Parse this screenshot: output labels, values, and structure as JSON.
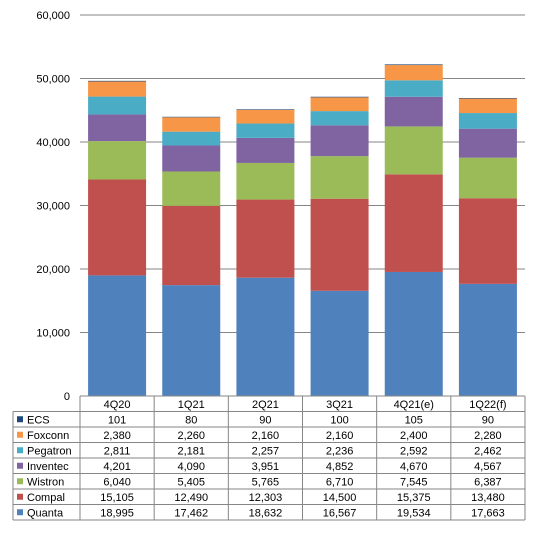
{
  "chart_data": {
    "type": "bar",
    "stacked": true,
    "categories": [
      "4Q20",
      "1Q21",
      "2Q21",
      "3Q21",
      "4Q21(e)",
      "1Q22(f)"
    ],
    "ylim": [
      0,
      60000
    ],
    "yticks": [
      0,
      10000,
      20000,
      30000,
      40000,
      50000,
      60000
    ],
    "ytick_labels": [
      "0",
      "10,000",
      "20,000",
      "30,000",
      "40,000",
      "50,000",
      "60,000"
    ],
    "grid": true,
    "legend_placement": "data-table-left",
    "series": [
      {
        "name": "Quanta",
        "color": "#4f81bd",
        "values": [
          18995,
          17462,
          18632,
          16567,
          19534,
          17663
        ],
        "labels": [
          "18,995",
          "17,462",
          "18,632",
          "16,567",
          "19,534",
          "17,663"
        ]
      },
      {
        "name": "Compal",
        "color": "#c0504d",
        "values": [
          15105,
          12490,
          12303,
          14500,
          15375,
          13480
        ],
        "labels": [
          "15,105",
          "12,490",
          "12,303",
          "14,500",
          "15,375",
          "13,480"
        ]
      },
      {
        "name": "Wistron",
        "color": "#9bbb59",
        "values": [
          6040,
          5405,
          5765,
          6710,
          7545,
          6387
        ],
        "labels": [
          "6,040",
          "5,405",
          "5,765",
          "6,710",
          "7,545",
          "6,387"
        ]
      },
      {
        "name": "Inventec",
        "color": "#8064a2",
        "values": [
          4201,
          4090,
          3951,
          4852,
          4670,
          4567
        ],
        "labels": [
          "4,201",
          "4,090",
          "3,951",
          "4,852",
          "4,670",
          "4,567"
        ]
      },
      {
        "name": "Pegatron",
        "color": "#4bacc6",
        "values": [
          2811,
          2181,
          2257,
          2236,
          2592,
          2462
        ],
        "labels": [
          "2,811",
          "2,181",
          "2,257",
          "2,236",
          "2,592",
          "2,462"
        ]
      },
      {
        "name": "Foxconn",
        "color": "#f79646",
        "values": [
          2380,
          2260,
          2160,
          2160,
          2400,
          2280
        ],
        "labels": [
          "2,380",
          "2,260",
          "2,160",
          "2,160",
          "2,400",
          "2,280"
        ]
      },
      {
        "name": "ECS",
        "color": "#1f497d",
        "values": [
          101,
          80,
          90,
          100,
          105,
          90
        ],
        "labels": [
          "101",
          "80",
          "90",
          "100",
          "105",
          "90"
        ]
      }
    ]
  }
}
